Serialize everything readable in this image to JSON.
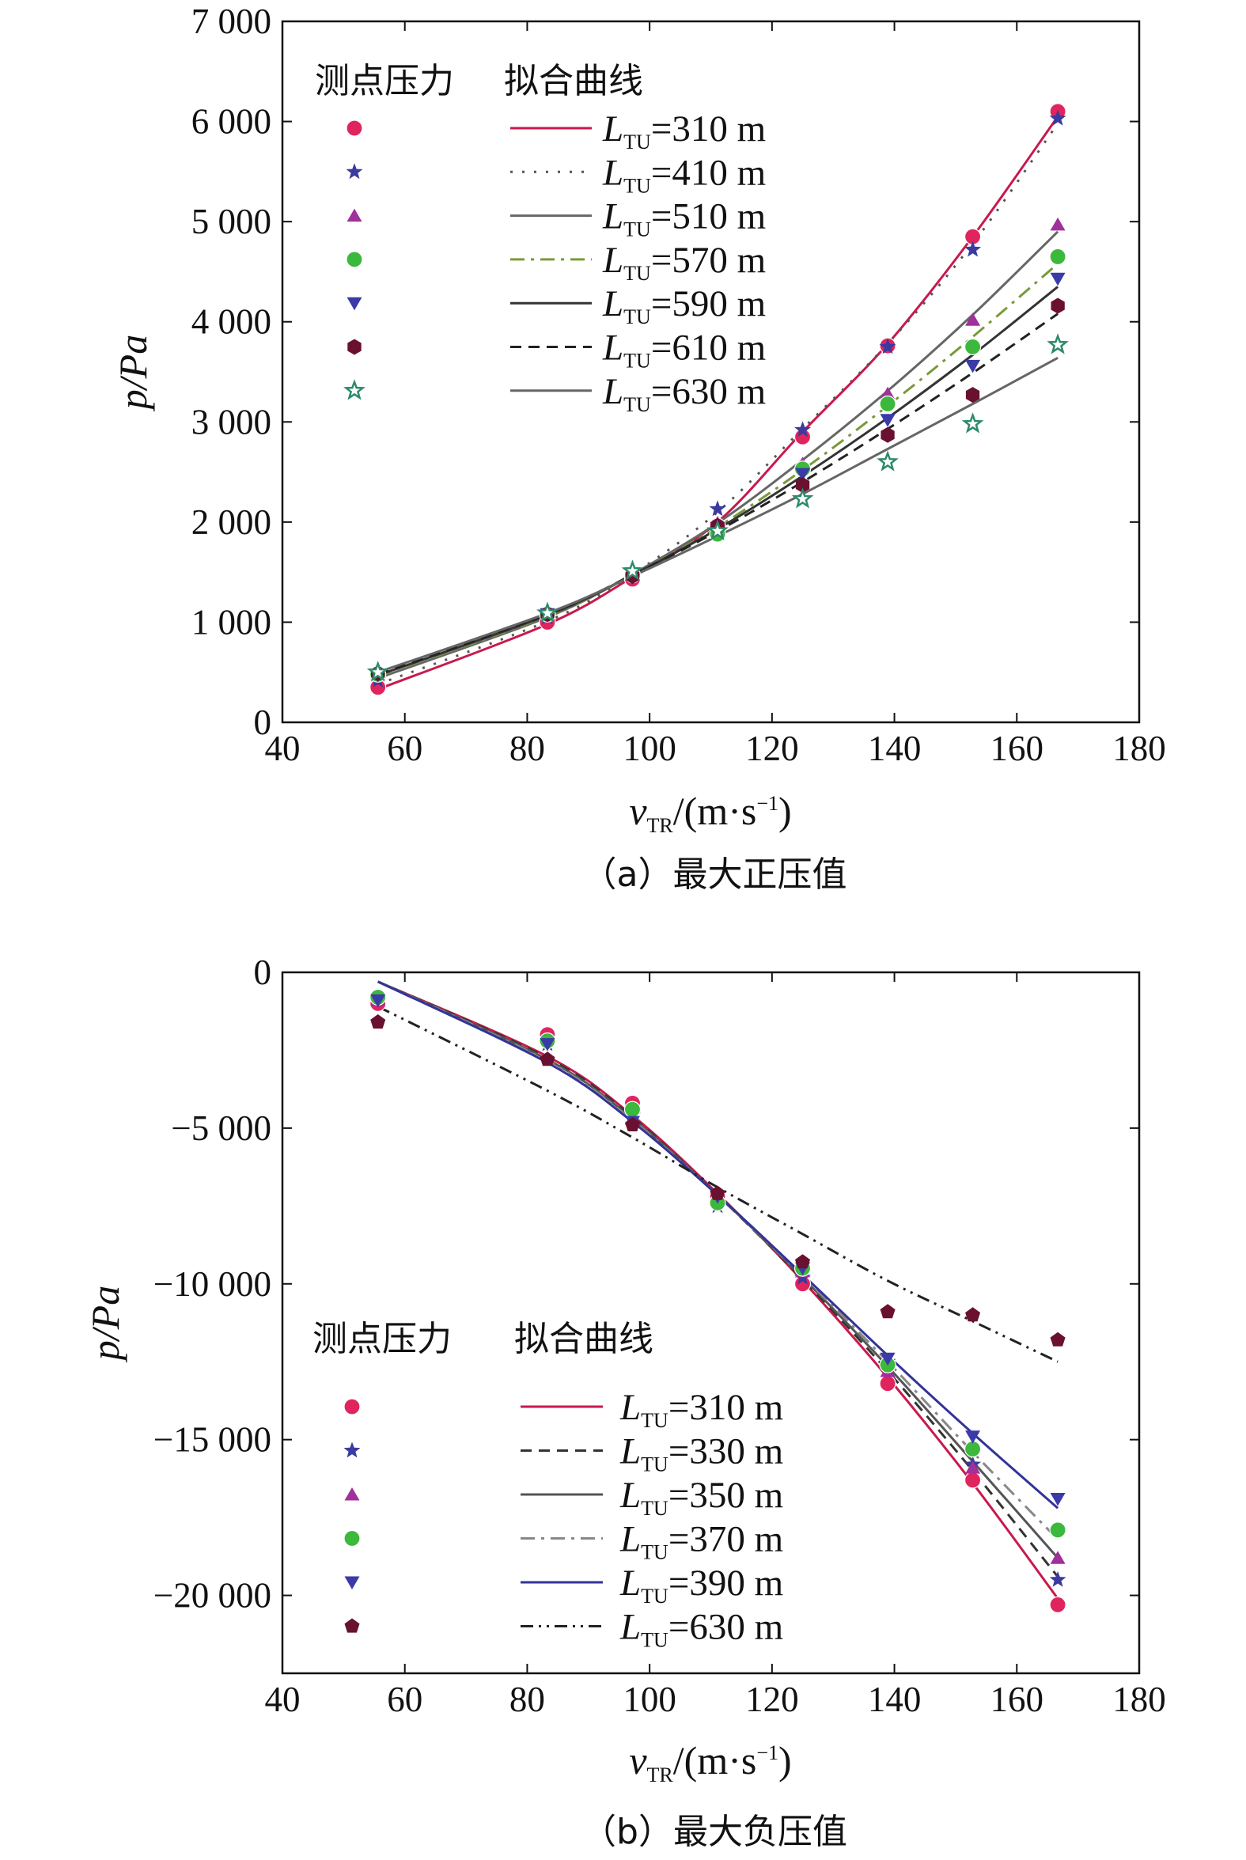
{
  "chart_data": [
    {
      "type": "line",
      "panel": "a",
      "caption": "（a）最大正压值",
      "ylabel": "p/Pa",
      "xlabel": "v_TR/(m·s⁻¹)",
      "xlabel_parts": {
        "var": "v",
        "sub": "TR",
        "unit": "/(m·s",
        "sup": "−1",
        "close": ")"
      },
      "xlim": [
        40,
        180
      ],
      "ylim": [
        0,
        7000
      ],
      "xticks": [
        40,
        60,
        80,
        100,
        120,
        140,
        160,
        180
      ],
      "xtick_labels": [
        "40",
        "60",
        "80",
        "100",
        "120",
        "140",
        "160",
        "180"
      ],
      "yticks": [
        0,
        1000,
        2000,
        3000,
        4000,
        5000,
        6000,
        7000
      ],
      "ytick_labels": [
        "0",
        "1 000",
        "2 000",
        "3 000",
        "4 000",
        "5 000",
        "6 000",
        "7 000"
      ],
      "legend_header_points": "测点压力",
      "legend_header_curves": "拟合曲线",
      "legend_location": "top-left",
      "x": [
        55.6,
        83.3,
        97.2,
        111.1,
        125.0,
        138.9,
        152.8,
        166.7
      ],
      "series": [
        {
          "name": "L_TU=310 m",
          "label_var": "L",
          "label_sub": "TU",
          "label_val": "=310 m",
          "marker": "circle",
          "marker_color": "#e0245e",
          "line_color": "#c8194d",
          "line_style": "solid",
          "measured": [
            350,
            1000,
            1430,
            1960,
            2850,
            3760,
            4850,
            6100
          ],
          "fit": [
            330,
            980,
            1450,
            2000,
            2900,
            3780,
            4850,
            6050
          ]
        },
        {
          "name": "L_TU=410 m",
          "label_var": "L",
          "label_sub": "TU",
          "label_val": "=410 m",
          "marker": "star",
          "marker_color": "#3a3aa0",
          "line_color": "#555555",
          "line_style": "dotted",
          "measured": [
            420,
            1050,
            1520,
            2130,
            2920,
            3750,
            4720,
            6030
          ],
          "fit": [
            380,
            1010,
            1480,
            2100,
            2930,
            3780,
            4780,
            5980
          ]
        },
        {
          "name": "L_TU=510 m",
          "label_var": "L",
          "label_sub": "TU",
          "label_val": "=510 m",
          "marker": "triangle-up",
          "marker_color": "#a0309a",
          "line_color": "#666666",
          "line_style": "solid",
          "measured": [
            480,
            1080,
            1500,
            1990,
            2580,
            3280,
            4020,
            4970
          ],
          "fit": [
            440,
            1050,
            1480,
            1990,
            2620,
            3310,
            4070,
            4900
          ]
        },
        {
          "name": "L_TU=570 m",
          "label_var": "L",
          "label_sub": "TU",
          "label_val": "=570 m",
          "marker": "circle",
          "marker_color": "#3cb83c",
          "line_color": "#7a9a3a",
          "line_style": "dashdot",
          "measured": [
            480,
            1080,
            1470,
            1880,
            2530,
            3180,
            3750,
            4650
          ],
          "fit": [
            460,
            1060,
            1470,
            1950,
            2520,
            3160,
            3850,
            4580
          ]
        },
        {
          "name": "L_TU=590 m",
          "label_var": "L",
          "label_sub": "TU",
          "label_val": "=590 m",
          "marker": "triangle-down",
          "marker_color": "#3a3aa8",
          "line_color": "#333333",
          "line_style": "solid",
          "measured": [
            470,
            1080,
            1480,
            1940,
            2480,
            3020,
            3560,
            4430
          ],
          "fit": [
            470,
            1070,
            1470,
            1930,
            2460,
            3040,
            3670,
            4350
          ]
        },
        {
          "name": "L_TU=610 m",
          "label_var": "L",
          "label_sub": "TU",
          "label_val": "=610 m",
          "marker": "hexagon",
          "marker_color": "#6a1030",
          "line_color": "#222222",
          "line_style": "dashed",
          "measured": [
            490,
            1080,
            1460,
            1960,
            2370,
            2870,
            3270,
            4160
          ],
          "fit": [
            480,
            1080,
            1470,
            1910,
            2400,
            2930,
            3490,
            4080
          ]
        },
        {
          "name": "L_TU=630 m",
          "label_var": "L",
          "label_sub": "TU",
          "label_val": "=630 m",
          "marker": "star-outline",
          "marker_color": "#2e8a6a",
          "line_color": "#666666",
          "line_style": "solid",
          "measured": [
            500,
            1090,
            1510,
            1910,
            2230,
            2600,
            2980,
            3770
          ],
          "fit": [
            500,
            1090,
            1460,
            1860,
            2280,
            2730,
            3180,
            3640
          ]
        }
      ]
    },
    {
      "type": "line",
      "panel": "b",
      "caption": "（b）最大负压值",
      "ylabel": "p/Pa",
      "xlabel": "v_TR/(m·s⁻¹)",
      "xlabel_parts": {
        "var": "v",
        "sub": "TR",
        "unit": "/(m·s",
        "sup": "−1",
        "close": ")"
      },
      "xlim": [
        40,
        180
      ],
      "ylim": [
        -22500,
        0
      ],
      "xticks": [
        40,
        60,
        80,
        100,
        120,
        140,
        160,
        180
      ],
      "xtick_labels": [
        "40",
        "60",
        "80",
        "100",
        "120",
        "140",
        "160",
        "180"
      ],
      "yticks": [
        0,
        -5000,
        -10000,
        -15000,
        -20000
      ],
      "ytick_labels": [
        "0",
        "−5 000",
        "−10 000",
        "−15 000",
        "−20 000"
      ],
      "legend_header_points": "测点压力",
      "legend_header_curves": "拟合曲线",
      "legend_location": "bottom-left",
      "x": [
        55.6,
        83.3,
        97.2,
        111.1,
        125.0,
        138.9,
        152.8,
        166.7
      ],
      "series": [
        {
          "name": "L_TU=310 m",
          "label_var": "L",
          "label_sub": "TU",
          "label_val": "=310 m",
          "marker": "circle",
          "marker_color": "#e0245e",
          "line_color": "#c8194d",
          "line_style": "solid",
          "measured": [
            -1000,
            -2000,
            -4200,
            -7200,
            -10000,
            -13200,
            -16300,
            -20300
          ],
          "fit": [
            -300,
            -2700,
            -4600,
            -7100,
            -9900,
            -13000,
            -16400,
            -20100
          ]
        },
        {
          "name": "L_TU=330 m",
          "label_var": "L",
          "label_sub": "TU",
          "label_val": "=330 m",
          "marker": "star",
          "marker_color": "#3a3aa0",
          "line_color": "#333333",
          "line_style": "dashed",
          "measured": [
            -800,
            -2300,
            -4600,
            -7500,
            -9800,
            -12500,
            -15800,
            -19500
          ],
          "fit": [
            -300,
            -2750,
            -4650,
            -7150,
            -9850,
            -12800,
            -16000,
            -19400
          ]
        },
        {
          "name": "L_TU=350 m",
          "label_var": "L",
          "label_sub": "TU",
          "label_val": "=350 m",
          "marker": "triangle-up",
          "marker_color": "#a0309a",
          "line_color": "#555555",
          "line_style": "solid",
          "measured": [
            -900,
            -2100,
            -4700,
            -7300,
            -9600,
            -12800,
            -15900,
            -18800
          ],
          "fit": [
            -300,
            -2800,
            -4700,
            -7150,
            -9800,
            -12650,
            -15700,
            -18800
          ]
        },
        {
          "name": "L_TU=370 m",
          "label_var": "L",
          "label_sub": "TU",
          "label_val": "=370 m",
          "marker": "circle",
          "marker_color": "#3cb83c",
          "line_color": "#888888",
          "line_style": "dashdot",
          "measured": [
            -800,
            -2200,
            -4400,
            -7400,
            -9500,
            -12600,
            -15300,
            -17900
          ],
          "fit": [
            -300,
            -2850,
            -4750,
            -7150,
            -9750,
            -12500,
            -15400,
            -18200
          ]
        },
        {
          "name": "L_TU=390 m",
          "label_var": "L",
          "label_sub": "TU",
          "label_val": "=390 m",
          "marker": "triangle-down",
          "marker_color": "#3a3aa8",
          "line_color": "#333399",
          "line_style": "solid",
          "measured": [
            -900,
            -2300,
            -4800,
            -7200,
            -9500,
            -12400,
            -14900,
            -16900
          ],
          "fit": [
            -300,
            -2900,
            -4800,
            -7150,
            -9700,
            -12300,
            -14800,
            -17200
          ]
        },
        {
          "name": "L_TU=630 m",
          "label_var": "L",
          "label_sub": "TU",
          "label_val": "=630 m",
          "marker": "pentagon",
          "marker_color": "#6a1030",
          "line_color": "#222222",
          "line_style": "dashdotdot",
          "measured": [
            -1600,
            -2800,
            -4900,
            -7100,
            -9300,
            -10900,
            -11000,
            -11800
          ],
          "fit": [
            -1100,
            -3800,
            -5300,
            -6900,
            -8400,
            -9900,
            -11200,
            -12500
          ]
        }
      ]
    }
  ]
}
